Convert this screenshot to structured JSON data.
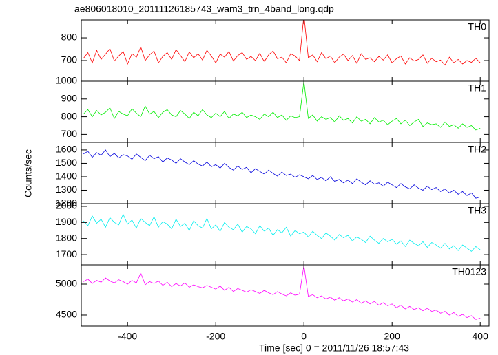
{
  "chart_data": {
    "type": "line",
    "title": "ae806018010_20111126185743_wam3_trn_4band_long.qdp",
    "xlabel": "Time [sec] 0 = 2011/11/26 18:57:43",
    "ylabel": "Counts/sec",
    "xlim": [
      -505,
      420
    ],
    "xticks": [
      -400,
      -200,
      0,
      200,
      400
    ],
    "x": [
      -500,
      -490,
      -480,
      -470,
      -460,
      -450,
      -440,
      -430,
      -420,
      -410,
      -400,
      -390,
      -380,
      -370,
      -360,
      -350,
      -340,
      -330,
      -320,
      -310,
      -300,
      -290,
      -280,
      -270,
      -260,
      -250,
      -240,
      -230,
      -220,
      -210,
      -200,
      -190,
      -180,
      -170,
      -160,
      -150,
      -140,
      -130,
      -120,
      -110,
      -100,
      -90,
      -80,
      -70,
      -60,
      -50,
      -40,
      -30,
      -20,
      -10,
      0,
      10,
      20,
      30,
      40,
      50,
      60,
      70,
      80,
      90,
      100,
      110,
      120,
      130,
      140,
      150,
      160,
      170,
      180,
      190,
      200,
      210,
      220,
      230,
      240,
      250,
      260,
      270,
      280,
      290,
      300,
      310,
      320,
      330,
      340,
      350,
      360,
      370,
      380,
      390,
      400
    ],
    "series": [
      {
        "name": "TH0",
        "color": "#ff0000",
        "ylim": [
          609,
          879
        ],
        "yticks": [
          700,
          800
        ],
        "values": [
          710,
          735,
          690,
          745,
          705,
          728,
          752,
          698,
          720,
          740,
          685,
          730,
          715,
          760,
          700,
          725,
          742,
          690,
          718,
          735,
          705,
          748,
          722,
          695,
          738,
          712,
          730,
          702,
          745,
          720,
          690,
          728,
          715,
          740,
          698,
          722,
          735,
          705,
          718,
          700,
          732,
          695,
          725,
          742,
          708,
          715,
          690,
          730,
          720,
          700,
          900,
          712,
          725,
          695,
          735,
          708,
          720,
          690,
          715,
          728,
          700,
          722,
          688,
          730,
          705,
          712,
          695,
          718,
          702,
          725,
          690,
          708,
          720,
          685,
          712,
          698,
          705,
          725,
          688,
          710,
          695,
          702,
          680,
          715,
          690,
          705,
          685,
          700,
          692,
          710,
          690
        ]
      },
      {
        "name": "TH1",
        "color": "#00ee00",
        "ylim": [
          655,
          1000
        ],
        "yticks": [
          700,
          800,
          900,
          1000
        ],
        "values": [
          815,
          840,
          800,
          835,
          810,
          825,
          850,
          790,
          830,
          815,
          805,
          845,
          820,
          800,
          860,
          815,
          830,
          795,
          825,
          840,
          810,
          800,
          835,
          815,
          790,
          825,
          805,
          840,
          810,
          795,
          820,
          800,
          830,
          790,
          815,
          805,
          825,
          795,
          810,
          800,
          785,
          815,
          800,
          825,
          795,
          810,
          780,
          805,
          795,
          800,
          1000,
          790,
          810,
          775,
          800,
          785,
          795,
          770,
          805,
          780,
          790,
          765,
          800,
          775,
          785,
          760,
          795,
          770,
          780,
          755,
          775,
          790,
          760,
          780,
          750,
          770,
          785,
          745,
          765,
          755,
          760,
          740,
          770,
          745,
          755,
          735,
          760,
          740,
          750,
          725,
          735
        ]
      },
      {
        "name": "TH2",
        "color": "#0000dd",
        "ylim": [
          1200,
          1656
        ],
        "yticks": [
          1200,
          1300,
          1400,
          1500,
          1600
        ],
        "values": [
          1570,
          1590,
          1545,
          1580,
          1560,
          1600,
          1550,
          1575,
          1540,
          1565,
          1555,
          1530,
          1570,
          1545,
          1520,
          1560,
          1535,
          1550,
          1510,
          1540,
          1525,
          1500,
          1535,
          1510,
          1490,
          1520,
          1495,
          1480,
          1510,
          1475,
          1490,
          1465,
          1500,
          1470,
          1450,
          1480,
          1455,
          1470,
          1430,
          1460,
          1440,
          1420,
          1450,
          1425,
          1405,
          1435,
          1410,
          1420,
          1395,
          1415,
          1400,
          1385,
          1410,
          1380,
          1395,
          1370,
          1400,
          1365,
          1380,
          1355,
          1375,
          1350,
          1385,
          1360,
          1340,
          1370,
          1345,
          1355,
          1330,
          1360,
          1340,
          1320,
          1350,
          1325,
          1310,
          1340,
          1315,
          1300,
          1330,
          1305,
          1320,
          1290,
          1310,
          1280,
          1300,
          1270,
          1290,
          1260,
          1280,
          1240,
          1250
        ]
      },
      {
        "name": "TH3",
        "color": "#00eeee",
        "ylim": [
          1636,
          2017
        ],
        "yticks": [
          1700,
          1800,
          1900,
          2000
        ],
        "values": [
          1910,
          1880,
          1940,
          1895,
          1920,
          1870,
          1930,
          1900,
          1885,
          1950,
          1890,
          1915,
          1865,
          1925,
          1900,
          1880,
          1935,
          1870,
          1905,
          1890,
          1860,
          1920,
          1875,
          1895,
          1850,
          1910,
          1880,
          1865,
          1925,
          1860,
          1885,
          1845,
          1900,
          1870,
          1855,
          1890,
          1840,
          1875,
          1860,
          1830,
          1880,
          1845,
          1865,
          1820,
          1855,
          1835,
          1870,
          1815,
          1850,
          1830,
          1840,
          1810,
          1845,
          1820,
          1800,
          1835,
          1815,
          1790,
          1825,
          1805,
          1820,
          1785,
          1810,
          1795,
          1775,
          1815,
          1790,
          1770,
          1800,
          1780,
          1795,
          1765,
          1785,
          1750,
          1790,
          1770,
          1755,
          1780,
          1745,
          1775,
          1760,
          1740,
          1770,
          1735,
          1755,
          1725,
          1760,
          1740,
          1720,
          1750,
          1730
        ]
      },
      {
        "name": "TH0123",
        "color": "#ff00ff",
        "ylim": [
          4322,
          5311
        ],
        "yticks": [
          4500,
          5000
        ],
        "values": [
          5040,
          5080,
          5010,
          5060,
          5030,
          5100,
          5050,
          5020,
          5070,
          5040,
          5000,
          5060,
          5020,
          5180,
          4990,
          5040,
          5010,
          5050,
          4980,
          5030,
          4960,
          5010,
          4970,
          5020,
          4950,
          4990,
          4960,
          4940,
          4980,
          4950,
          4920,
          4970,
          4900,
          4950,
          4880,
          4930,
          4900,
          4870,
          4910,
          4880,
          4850,
          4900,
          4860,
          4830,
          4880,
          4840,
          4810,
          4860,
          4820,
          4840,
          5300,
          4800,
          4830,
          4780,
          4810,
          4760,
          4790,
          4740,
          4780,
          4730,
          4760,
          4710,
          4750,
          4690,
          4730,
          4680,
          4720,
          4660,
          4700,
          4650,
          4680,
          4620,
          4660,
          4600,
          4640,
          4590,
          4620,
          4570,
          4610,
          4560,
          4580,
          4530,
          4560,
          4500,
          4540,
          4480,
          4510,
          4460,
          4490,
          4430,
          4450
        ]
      }
    ]
  }
}
